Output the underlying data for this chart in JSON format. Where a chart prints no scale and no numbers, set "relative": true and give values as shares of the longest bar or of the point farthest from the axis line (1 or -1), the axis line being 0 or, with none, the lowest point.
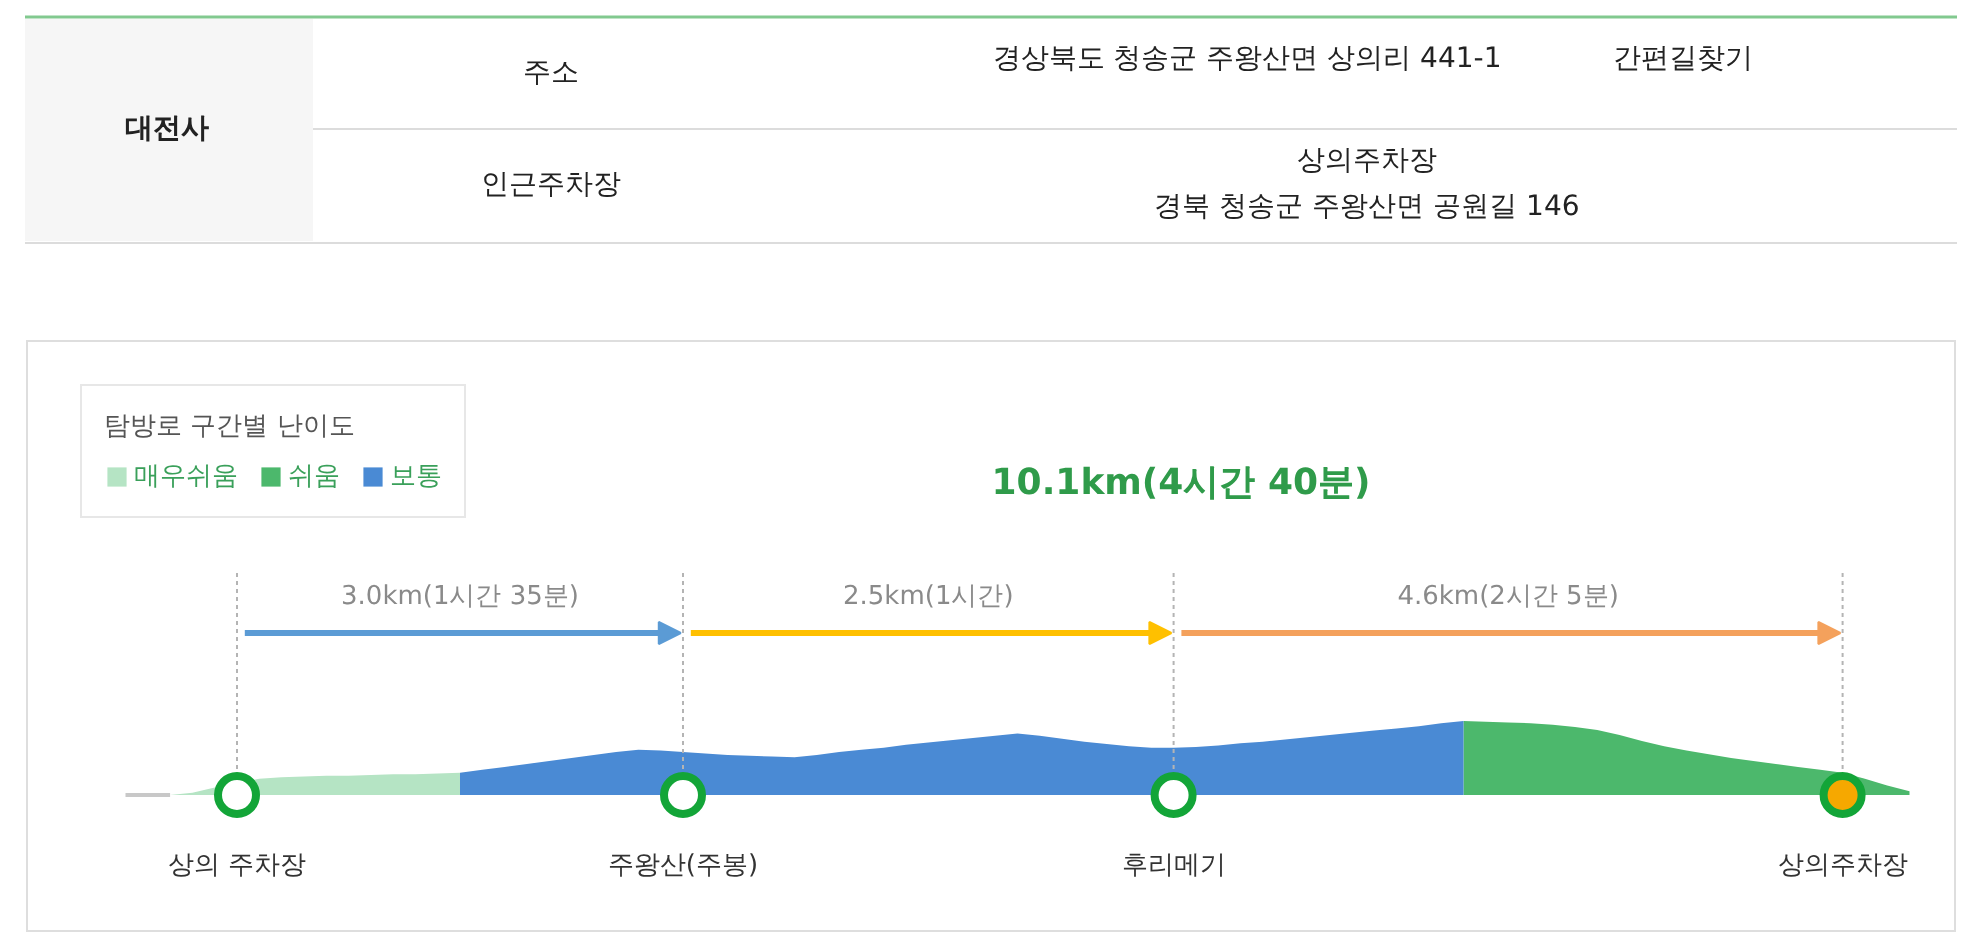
{
  "chart_data": [
    {
      "type": "other",
      "title": "대전사",
      "annotations": [
        "주소",
        "경상북도 청송군 주왕산면 상의리 441-1",
        "간편길찾기",
        "인근주차장",
        "상의주차장",
        "경북 청송군 주왕산면 공원길 146"
      ]
    },
    {
      "type": "area",
      "title": "10.1km(4시간 40분)",
      "legend_title": "탐방로 구간별 난이도",
      "relative": true,
      "grid": "x",
      "legend": "top left",
      "tick_labels": "x",
      "annotations": [
        "3.0km(1시간 35분)",
        "2.5km(1시간)",
        "4.6km(2시간 5분)"
      ],
      "categories": [
        null,
        null,
        null,
        null,
        null,
        "상의 주차장",
        null,
        null,
        null,
        null,
        null,
        null,
        null,
        null,
        null,
        null,
        null,
        null,
        null,
        null,
        null,
        null,
        null,
        null,
        null,
        "주왕산(주봉)",
        null,
        null,
        null,
        null,
        null,
        null,
        null,
        null,
        null,
        null,
        null,
        null,
        null,
        null,
        null,
        null,
        null,
        null,
        null,
        null,
        null,
        "후리메기",
        null,
        null,
        null,
        null,
        null,
        null,
        null,
        null,
        null,
        null,
        null,
        null,
        null,
        null,
        null,
        null,
        null,
        null,
        null,
        null,
        null,
        null,
        null,
        null,
        null,
        null,
        null,
        null,
        null,
        "상의주차장",
        null,
        null,
        null
      ],
      "series": [
        {
          "name": "매우쉬움",
          "color": "#b5e4c4",
          "values": [
            null,
            null,
            0,
            0.03,
            0.1,
            null,
            0.22,
            0.24,
            0.25,
            0.26,
            0.26,
            0.27,
            0.28,
            0.28,
            0.29,
            0.3,
            null,
            null,
            null,
            null,
            null,
            null,
            null,
            null,
            null,
            null,
            null,
            null,
            null,
            null,
            null,
            null,
            null,
            null,
            null,
            null,
            null,
            null,
            null,
            null,
            null,
            null,
            null,
            null,
            null,
            null,
            null,
            null,
            null,
            null,
            null,
            null,
            null,
            null,
            null,
            null,
            null,
            null,
            null,
            null,
            null,
            null,
            null,
            null,
            null,
            null,
            null,
            null,
            null,
            null,
            null,
            null,
            null,
            null,
            null,
            null,
            null,
            null,
            null,
            null,
            null
          ]
        },
        {
          "name": "쉬움",
          "color": "#4cb86c",
          "values": [
            null,
            null,
            null,
            null,
            null,
            null,
            null,
            null,
            null,
            null,
            null,
            null,
            null,
            null,
            null,
            null,
            null,
            null,
            null,
            null,
            null,
            null,
            null,
            null,
            null,
            null,
            null,
            null,
            null,
            null,
            null,
            null,
            null,
            null,
            null,
            null,
            null,
            null,
            null,
            null,
            null,
            null,
            null,
            null,
            null,
            null,
            null,
            null,
            null,
            null,
            null,
            null,
            null,
            null,
            null,
            null,
            null,
            null,
            null,
            null,
            1.0,
            0.99,
            0.98,
            0.97,
            0.95,
            0.92,
            0.88,
            0.81,
            0.73,
            0.66,
            0.6,
            0.55,
            0.5,
            0.46,
            0.42,
            0.38,
            0.34,
            0.3,
            0.22,
            0.13,
            0.05
          ]
        },
        {
          "name": "보통",
          "color": "#4a8ad4",
          "values": [
            null,
            null,
            null,
            null,
            null,
            null,
            null,
            null,
            null,
            null,
            null,
            null,
            null,
            null,
            null,
            0.3,
            0.34,
            0.38,
            0.42,
            0.46,
            0.5,
            0.54,
            0.58,
            0.61,
            0.6,
            0.58,
            0.56,
            0.54,
            0.53,
            0.52,
            0.51,
            0.54,
            0.58,
            0.61,
            0.64,
            0.68,
            0.71,
            0.74,
            0.77,
            0.8,
            0.83,
            0.8,
            0.76,
            0.72,
            0.69,
            0.66,
            0.64,
            0.64,
            0.65,
            0.67,
            0.7,
            0.72,
            0.75,
            0.78,
            0.81,
            0.84,
            0.87,
            0.9,
            0.93,
            0.97,
            1.0,
            null,
            null,
            null,
            null,
            null,
            null,
            null,
            null,
            null,
            null,
            null,
            null,
            null,
            null,
            null,
            null,
            null,
            null,
            null,
            null
          ]
        },
        {
          "type": "line",
          "color": "#c8c8c8",
          "values": [
            0,
            0,
            0,
            null,
            null,
            null,
            null,
            null,
            null,
            null,
            null,
            null,
            null,
            null,
            null,
            null,
            null,
            null,
            null,
            null,
            null,
            null,
            null,
            null,
            null,
            null,
            null,
            null,
            null,
            null,
            null,
            null,
            null,
            null,
            null,
            null,
            null,
            null,
            null,
            null,
            null,
            null,
            null,
            null,
            null,
            null,
            null,
            null,
            null,
            null,
            null,
            null,
            null,
            null,
            null,
            null,
            null,
            null,
            null,
            null,
            null,
            null,
            null,
            null,
            null,
            null,
            null,
            null,
            null,
            null,
            null,
            null,
            null,
            null,
            null,
            null,
            null,
            null,
            null,
            null,
            null
          ]
        },
        {
          "type": "scatter",
          "marker": "circle",
          "color": "#13a538",
          "colors": [
            null,
            null,
            null,
            null,
            null,
            "#ffffff",
            null,
            null,
            null,
            null,
            null,
            null,
            null,
            null,
            null,
            null,
            null,
            null,
            null,
            null,
            null,
            null,
            null,
            null,
            null,
            "#ffffff",
            null,
            null,
            null,
            null,
            null,
            null,
            null,
            null,
            null,
            null,
            null,
            null,
            null,
            null,
            null,
            null,
            null,
            null,
            null,
            null,
            null,
            "#ffffff",
            null,
            null,
            null,
            null,
            null,
            null,
            null,
            null,
            null,
            null,
            null,
            null,
            null,
            null,
            null,
            null,
            null,
            null,
            null,
            null,
            null,
            null,
            null,
            null,
            null,
            null,
            null,
            null,
            null,
            "#f6a800",
            null,
            null,
            null
          ],
          "values": [
            null,
            null,
            null,
            null,
            null,
            0,
            null,
            null,
            null,
            null,
            null,
            null,
            null,
            null,
            null,
            null,
            null,
            null,
            null,
            null,
            null,
            null,
            null,
            null,
            null,
            0,
            null,
            null,
            null,
            null,
            null,
            null,
            null,
            null,
            null,
            null,
            null,
            null,
            null,
            null,
            null,
            null,
            null,
            null,
            null,
            null,
            null,
            0,
            null,
            null,
            null,
            null,
            null,
            null,
            null,
            null,
            null,
            null,
            null,
            null,
            null,
            null,
            null,
            null,
            null,
            null,
            null,
            null,
            null,
            null,
            null,
            null,
            null,
            null,
            null,
            null,
            null,
            0,
            null,
            null,
            null
          ]
        }
      ]
    }
  ]
}
